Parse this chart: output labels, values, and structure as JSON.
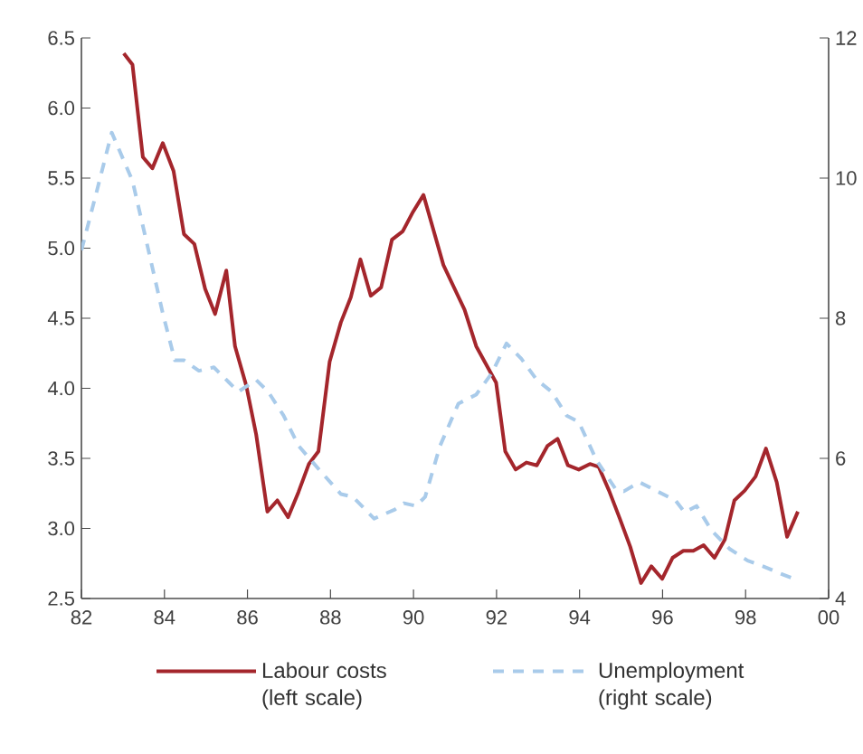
{
  "chart_data": {
    "type": "line",
    "xlim": [
      1982,
      2000
    ],
    "xticks": [
      {
        "value": 1982,
        "label": "82"
      },
      {
        "value": 1984,
        "label": "84"
      },
      {
        "value": 1986,
        "label": "86"
      },
      {
        "value": 1988,
        "label": "88"
      },
      {
        "value": 1990,
        "label": "90"
      },
      {
        "value": 1992,
        "label": "92"
      },
      {
        "value": 1994,
        "label": "94"
      },
      {
        "value": 1996,
        "label": "96"
      },
      {
        "value": 1998,
        "label": "98"
      },
      {
        "value": 2000,
        "label": "00"
      }
    ],
    "ylim": [
      2.5,
      6.5
    ],
    "yticks": [
      {
        "value": 2.5,
        "label": "2.5"
      },
      {
        "value": 3.0,
        "label": "3.0"
      },
      {
        "value": 3.5,
        "label": "3.5"
      },
      {
        "value": 4.0,
        "label": "4.0"
      },
      {
        "value": 4.5,
        "label": "4.5"
      },
      {
        "value": 5.0,
        "label": "5.0"
      },
      {
        "value": 5.5,
        "label": "5.5"
      },
      {
        "value": 6.0,
        "label": "6.0"
      },
      {
        "value": 6.5,
        "label": "6.5"
      }
    ],
    "y2lim": [
      4,
      12
    ],
    "y2ticks": [
      4,
      6,
      8,
      10,
      12
    ],
    "legend": "bottom",
    "series": [
      {
        "name": "Labour costs (left scale)",
        "color": "#a4262c",
        "line_style": "solid",
        "x": [
          1983.02,
          1983.23,
          1983.48,
          1983.71,
          1983.96,
          1984.22,
          1984.47,
          1984.72,
          1984.98,
          1985.22,
          1985.49,
          1985.7,
          1985.97,
          1986.21,
          1986.48,
          1986.72,
          1986.98,
          1987.23,
          1987.48,
          1987.71,
          1987.98,
          1988.25,
          1988.49,
          1988.72,
          1988.97,
          1989.22,
          1989.48,
          1989.74,
          1989.99,
          1990.24,
          1990.72,
          1991.23,
          1991.51,
          1991.99,
          1992.21,
          1992.46,
          1992.72,
          1992.97,
          1993.23,
          1993.47,
          1993.72,
          1993.98,
          1994.25,
          1994.46,
          1994.71,
          1994.97,
          1995.22,
          1995.48,
          1995.73,
          1995.99,
          1996.24,
          1996.5,
          1996.74,
          1996.99,
          1997.25,
          1997.5,
          1997.73,
          1997.98,
          1998.24,
          1998.49,
          1998.75,
          1999.0,
          1999.26
        ],
        "values": [
          6.39,
          6.31,
          5.65,
          5.57,
          5.75,
          5.55,
          5.1,
          5.03,
          4.71,
          4.53,
          4.84,
          4.3,
          4.02,
          3.67,
          3.12,
          3.2,
          3.08,
          3.26,
          3.46,
          3.55,
          4.19,
          4.47,
          4.65,
          4.92,
          4.66,
          4.72,
          5.06,
          5.12,
          5.26,
          5.38,
          4.88,
          4.56,
          4.3,
          4.04,
          3.55,
          3.42,
          3.47,
          3.45,
          3.59,
          3.64,
          3.45,
          3.42,
          3.46,
          3.44,
          3.27,
          3.07,
          2.87,
          2.61,
          2.73,
          2.64,
          2.79,
          2.84,
          2.84,
          2.88,
          2.79,
          2.92,
          3.2,
          3.27,
          3.37,
          3.57,
          3.33,
          2.94,
          3.12
        ]
      },
      {
        "name": "Unemployment (right scale)",
        "color": "#a9cbea",
        "line_style": "dashed",
        "axis": "y2",
        "x": [
          1982.0,
          1982.36,
          1982.73,
          1983.23,
          1983.53,
          1983.96,
          1984.25,
          1984.47,
          1984.83,
          1985.19,
          1985.56,
          1985.78,
          1986.21,
          1986.5,
          1986.87,
          1987.23,
          1987.74,
          1988.25,
          1988.54,
          1989.05,
          1989.55,
          1989.77,
          1990.06,
          1990.28,
          1990.64,
          1991.08,
          1991.51,
          1991.88,
          1992.24,
          1992.6,
          1992.97,
          1993.33,
          1993.69,
          1993.98,
          1994.42,
          1994.86,
          1995.07,
          1995.44,
          1995.87,
          1996.31,
          1996.53,
          1996.82,
          1997.18,
          1997.61,
          1998.05,
          1998.42,
          1998.78,
          1999.21
        ],
        "values": [
          8.97,
          9.79,
          10.65,
          9.96,
          9.19,
          8.07,
          7.4,
          7.4,
          7.25,
          7.3,
          7.08,
          6.95,
          7.12,
          6.95,
          6.61,
          6.18,
          5.83,
          5.49,
          5.45,
          5.14,
          5.27,
          5.36,
          5.32,
          5.45,
          6.18,
          6.78,
          6.91,
          7.21,
          7.64,
          7.42,
          7.12,
          6.95,
          6.61,
          6.52,
          5.96,
          5.57,
          5.53,
          5.66,
          5.53,
          5.4,
          5.23,
          5.32,
          4.97,
          4.71,
          4.54,
          4.46,
          4.37,
          4.27
        ]
      }
    ]
  }
}
